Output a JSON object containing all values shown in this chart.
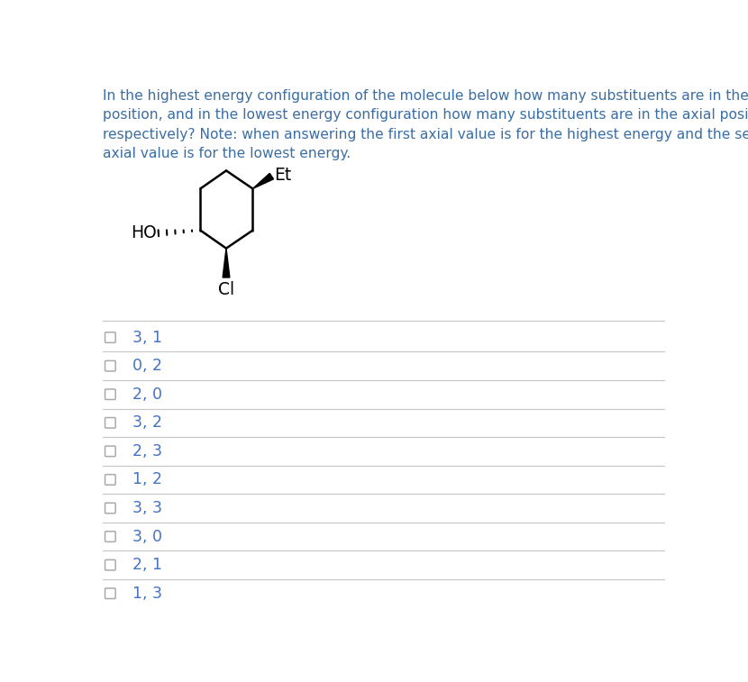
{
  "question_text": "In the highest energy configuration of the molecule below how many substituents are in the axial\nposition, and in the lowest energy configuration how many substituents are in the axial position\nrespectively? Note: when answering the first axial value is for the highest energy and the second\naxial value is for the lowest energy.",
  "question_color": "#3a6ea5",
  "options": [
    "3, 1",
    "0, 2",
    "2, 0",
    "3, 2",
    "2, 3",
    "1, 2",
    "3, 3",
    "3, 0",
    "2, 1",
    "1, 3"
  ],
  "option_color": "#4472c4",
  "background_color": "#ffffff",
  "separator_color": "#c8c8c8",
  "checkbox_color": "#aaaaaa",
  "molecule_color": "#000000",
  "label_Et": "Et",
  "label_HO": "HO",
  "label_Cl": "Cl",
  "question_fontsize": 11.2,
  "option_fontsize": 12.5,
  "mol_label_fontsize": 13.5
}
